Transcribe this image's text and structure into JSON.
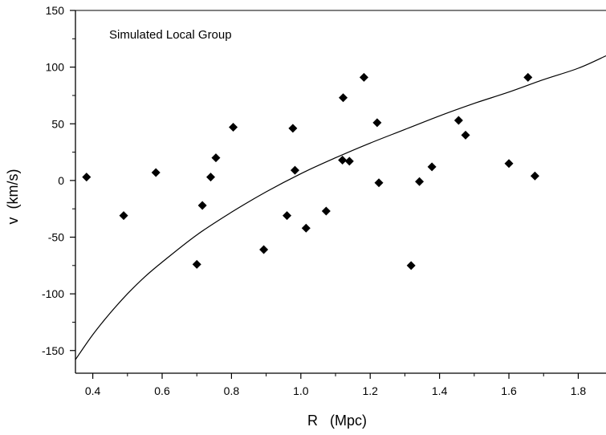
{
  "chart_data": {
    "type": "scatter",
    "title": "",
    "annotation": "Simulated Local Group",
    "xlabel": "R   (Mpc)",
    "ylabel": "v  (km/s)",
    "xlim": [
      0.35,
      1.88
    ],
    "ylim": [
      -170,
      150
    ],
    "x_ticks": [
      0.4,
      0.6,
      0.8,
      1.0,
      1.2,
      1.4,
      1.6,
      1.8
    ],
    "x_tick_labels": [
      "0.4",
      "0.6",
      "0.8",
      "1.0",
      "1.2",
      "1.4",
      "1.6",
      "1.8"
    ],
    "y_ticks": [
      -150,
      -100,
      -50,
      0,
      50,
      100,
      150
    ],
    "y_tick_labels": [
      "-150",
      "-100",
      "-50",
      "0",
      "50",
      "100",
      "150"
    ],
    "grid": false,
    "marker": "diamond",
    "series": [
      {
        "points": [
          [
            0.382,
            3
          ],
          [
            0.489,
            -31
          ],
          [
            0.582,
            7
          ],
          [
            0.7,
            -74
          ],
          [
            0.716,
            -22
          ],
          [
            0.74,
            3
          ],
          [
            0.755,
            20
          ],
          [
            0.805,
            47
          ],
          [
            0.893,
            -61
          ],
          [
            0.96,
            -31
          ],
          [
            0.977,
            46
          ],
          [
            0.983,
            9
          ],
          [
            1.015,
            -42
          ],
          [
            1.073,
            -27
          ],
          [
            1.12,
            18
          ],
          [
            1.122,
            73
          ],
          [
            1.14,
            17
          ],
          [
            1.182,
            91
          ],
          [
            1.22,
            51
          ],
          [
            1.225,
            -2
          ],
          [
            1.318,
            -75
          ],
          [
            1.342,
            -1
          ],
          [
            1.378,
            12
          ],
          [
            1.455,
            53
          ],
          [
            1.475,
            40
          ],
          [
            1.6,
            15
          ],
          [
            1.655,
            91
          ],
          [
            1.675,
            4
          ]
        ]
      }
    ],
    "curve": {
      "x": [
        0.35,
        0.4,
        0.45,
        0.5,
        0.55,
        0.6,
        0.7,
        0.8,
        0.9,
        1.0,
        1.1,
        1.2,
        1.3,
        1.4,
        1.5,
        1.6,
        1.7,
        1.8,
        1.88
      ],
      "y": [
        -158,
        -136,
        -117,
        -100,
        -85,
        -72,
        -48,
        -28,
        -10,
        6,
        20,
        33,
        45,
        57,
        68,
        78,
        89,
        99,
        110
      ]
    },
    "colors": {
      "marker": "#000000",
      "curve": "#000000",
      "axes": "#000000"
    }
  }
}
